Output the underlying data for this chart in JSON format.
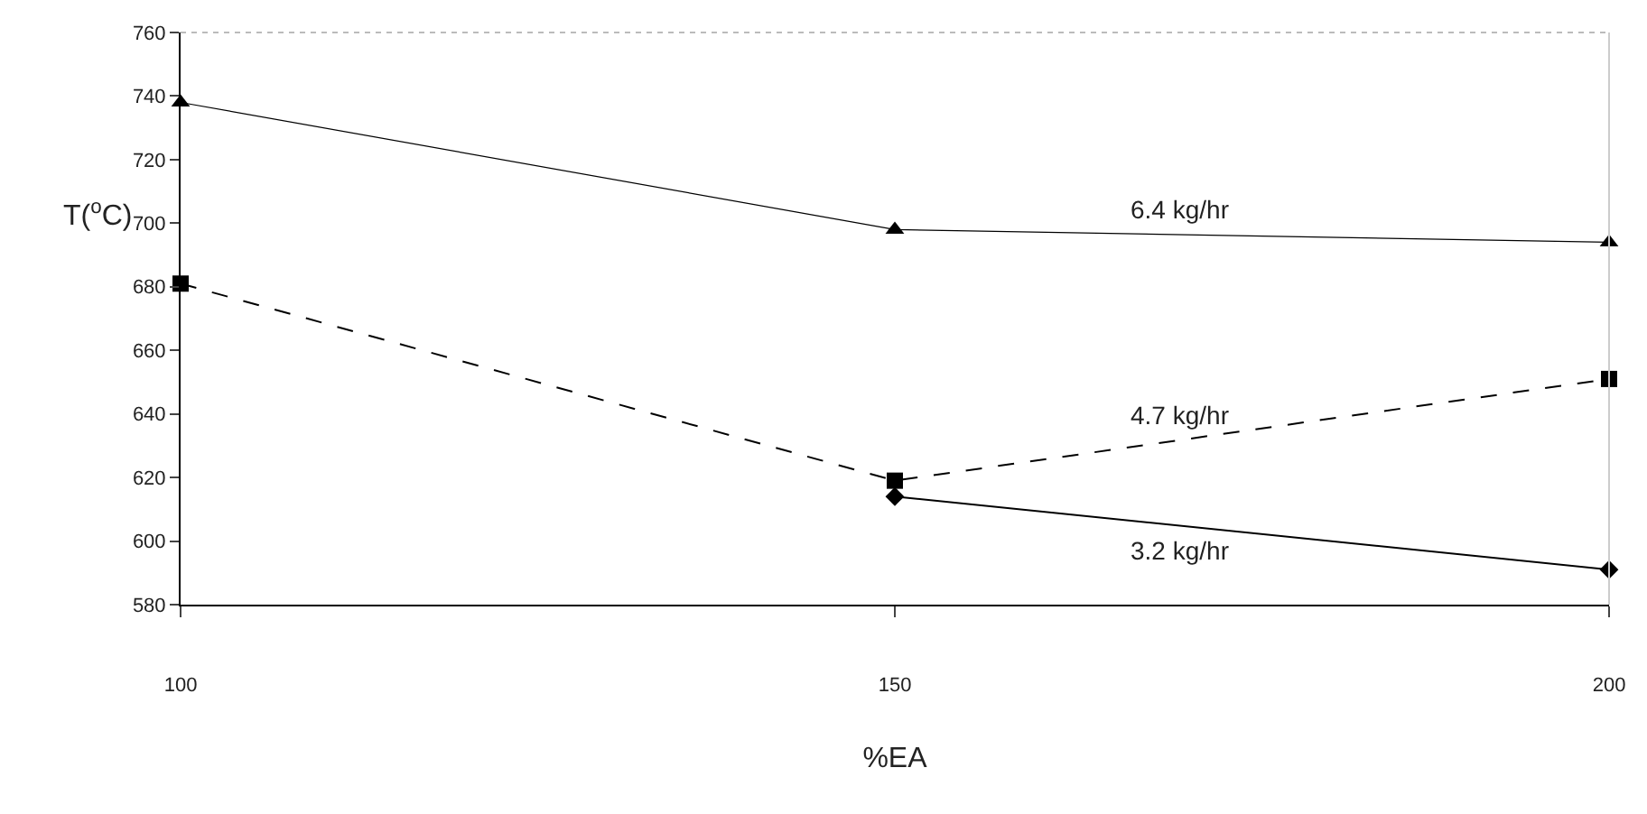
{
  "chart_data": {
    "type": "line",
    "xlabel": "%EA",
    "ylabel": "T($^{o}$C)",
    "x": [
      100,
      150,
      200
    ],
    "series": [
      {
        "name": "6.4 kg/hr",
        "color": "#000000",
        "values": [
          738,
          698,
          694
        ],
        "marker": "triangle",
        "line_style": "solid"
      },
      {
        "name": "4.7 kg/hr",
        "color": "#000000",
        "values": [
          681,
          619,
          651
        ],
        "marker": "square",
        "line_style": "dashed"
      },
      {
        "name": "3.2 kg/hr",
        "color": "#000000",
        "values": [
          null,
          614,
          591
        ],
        "marker": "diamond",
        "line_style": "solid"
      }
    ],
    "xlim": [
      100,
      200
    ],
    "xticks": [
      100,
      150,
      200
    ],
    "ylim": [
      580,
      760
    ],
    "yticks": [
      580,
      600,
      620,
      640,
      660,
      680,
      700,
      720,
      740,
      760
    ],
    "legend": false
  }
}
